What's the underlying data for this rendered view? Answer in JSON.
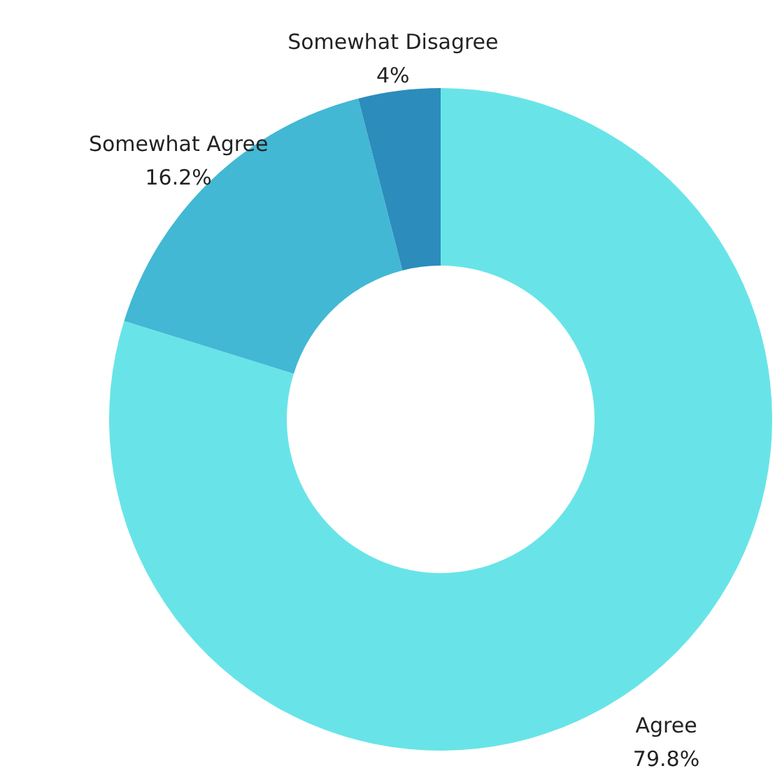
{
  "chart_data": {
    "type": "donut",
    "categories": [
      "Agree",
      "Somewhat Agree",
      "Somewhat Disagree"
    ],
    "values": [
      79.8,
      16.2,
      4
    ],
    "value_labels": [
      "79.8%",
      "16.2%",
      "4%"
    ],
    "colors": [
      "#68e4e8",
      "#42b8d4",
      "#2c8cbc"
    ]
  }
}
